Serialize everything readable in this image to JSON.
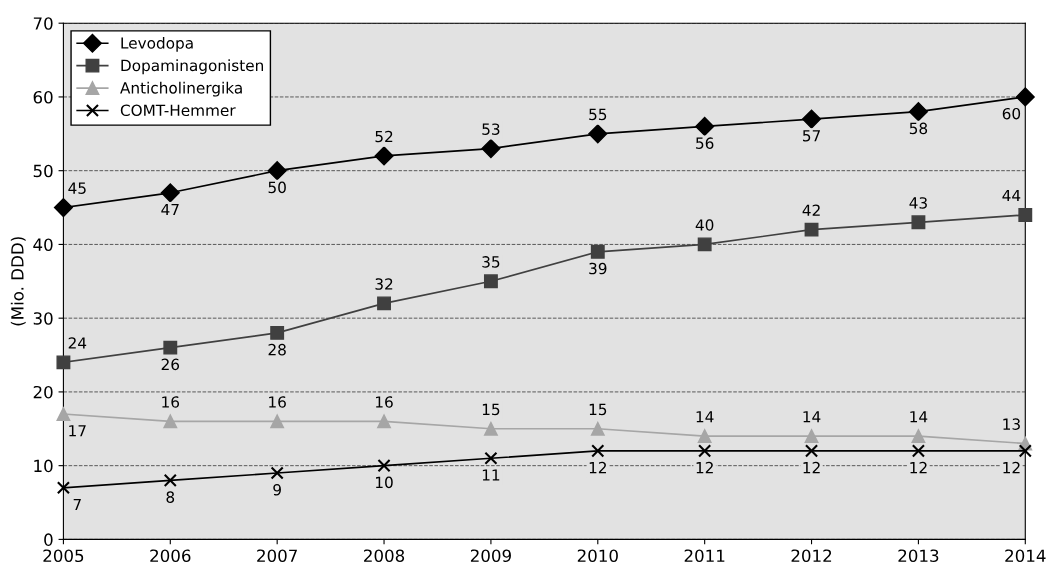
{
  "chart_data": {
    "type": "line",
    "ylabel": "(Mio. DDD)",
    "x": [
      2005,
      2006,
      2007,
      2008,
      2009,
      2010,
      2011,
      2012,
      2013,
      2014
    ],
    "xlim": [
      2005,
      2014
    ],
    "xticks": [
      2005,
      2006,
      2007,
      2008,
      2009,
      2010,
      2011,
      2012,
      2013,
      2014
    ],
    "ylim": [
      0,
      70
    ],
    "yticks": [
      0,
      10,
      20,
      30,
      40,
      50,
      60,
      70
    ],
    "grid": "y",
    "legend": "top left",
    "data_labels": true,
    "series": [
      {
        "name": "Levodopa",
        "color": "#000000",
        "marker": "diamond",
        "values": [
          45,
          47,
          50,
          52,
          53,
          55,
          56,
          57,
          58,
          60
        ]
      },
      {
        "name": "Dopaminagonisten",
        "color": "#404040",
        "marker": "square",
        "values": [
          24,
          26,
          28,
          32,
          35,
          39,
          40,
          42,
          43,
          44
        ]
      },
      {
        "name": "Anticholinergika",
        "color": "#a6a6a6",
        "marker": "triangle",
        "values": [
          17,
          16,
          16,
          16,
          15,
          15,
          14,
          14,
          14,
          13
        ]
      },
      {
        "name": "COMT-Hemmer",
        "color": "#000000",
        "marker": "cross",
        "values": [
          7,
          8,
          9,
          10,
          11,
          12,
          12,
          12,
          12,
          12
        ]
      }
    ]
  }
}
